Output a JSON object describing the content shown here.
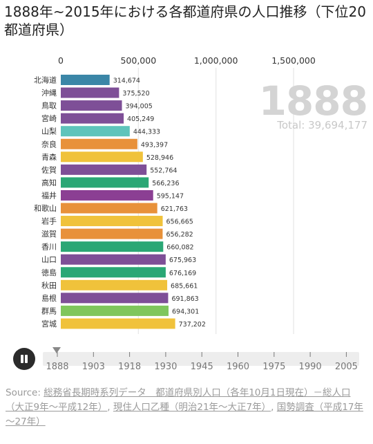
{
  "title": "1888年~2015年における各都道府県の人口推移（下位20都道府県）",
  "year": "1888",
  "total": "Total: 39,694,177",
  "timeline_years": [
    "1888",
    "1903",
    "1918",
    "1930",
    "1945",
    "1960",
    "1975",
    "1990",
    "2005"
  ],
  "source": {
    "prefix": "Source: ",
    "link1": "総務省長期時系列データ　都道府県別人口（各年10月1日現在）－総人口（大正9年～平成12年）",
    "sep1": ", ",
    "link2": "現住人口乙種（明治21年～大正7年）",
    "sep2": ", ",
    "link3": "国勢調査（平成17年～27年）"
  },
  "chart_data": {
    "type": "bar",
    "orientation": "horizontal",
    "title": "1888年~2015年における各都道府県の人口推移（下位20都道府県）",
    "year": 1888,
    "xlim": [
      0,
      1500000
    ],
    "x_ticks": [
      "0",
      "500,000",
      "1,000,000",
      "1,500,000"
    ],
    "x_tick_values": [
      0,
      500000,
      1000000,
      1500000
    ],
    "grid": true,
    "categories": [
      "北海道",
      "沖縄",
      "鳥取",
      "宮崎",
      "山梨",
      "奈良",
      "青森",
      "佐賀",
      "高知",
      "福井",
      "和歌山",
      "岩手",
      "滋賀",
      "香川",
      "山口",
      "徳島",
      "秋田",
      "島根",
      "群馬",
      "宮城"
    ],
    "values": [
      314674,
      375520,
      394005,
      405249,
      444333,
      493397,
      528946,
      552764,
      566236,
      595147,
      621763,
      656665,
      656282,
      660082,
      675963,
      676169,
      685661,
      691863,
      694301,
      737202
    ],
    "labels": [
      "314,674",
      "375,520",
      "394,005",
      "405,249",
      "444,333",
      "493,397",
      "528,946",
      "552,764",
      "566,236",
      "595,147",
      "621,763",
      "656,665",
      "656,282",
      "660,082",
      "675,963",
      "676,169",
      "685,661",
      "691,863",
      "694,301",
      "737,202"
    ],
    "colors": [
      "#3b86a7",
      "#7e4f97",
      "#7e4f97",
      "#7e4f97",
      "#5ec4bb",
      "#e8913a",
      "#f0c23b",
      "#7e4f97",
      "#2aa775",
      "#8b3f93",
      "#e8913a",
      "#f0c23b",
      "#e8913a",
      "#2aa775",
      "#7e4f97",
      "#2aa775",
      "#f0c23b",
      "#7e4f97",
      "#7fc65c",
      "#f0c23b"
    ]
  }
}
